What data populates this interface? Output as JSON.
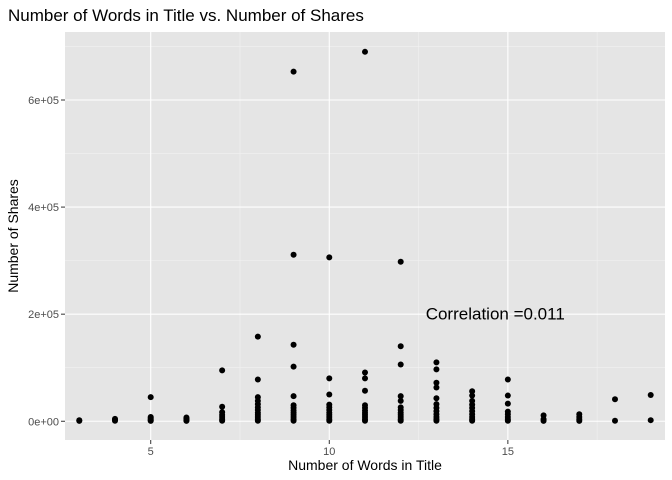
{
  "chart_data": {
    "type": "scatter",
    "title": "Number of Words in Title vs. Number of Shares",
    "xlabel": "Number of Words in Title",
    "ylabel": "Number of Shares",
    "xlim": [
      2.6,
      19.4
    ],
    "ylim": [
      -35000,
      727000
    ],
    "x_ticks": [
      5,
      10,
      15
    ],
    "x_tick_labels": [
      "5",
      "10",
      "15"
    ],
    "y_ticks": [
      0,
      200000,
      400000,
      600000
    ],
    "y_tick_labels": [
      "0e+00",
      "2e+05",
      "4e+05",
      "6e+05"
    ],
    "grid": true,
    "background": "#e5e5e5",
    "point_color": "#000000",
    "annotation": {
      "text": "Correlation =0.011",
      "x": 12.7,
      "y": 190000
    },
    "points": [
      [
        3,
        800
      ],
      [
        3,
        2000
      ],
      [
        4,
        1000
      ],
      [
        4,
        2500
      ],
      [
        4,
        4500
      ],
      [
        5,
        800
      ],
      [
        5,
        2000
      ],
      [
        5,
        4000
      ],
      [
        5,
        6000
      ],
      [
        5,
        8000
      ],
      [
        5,
        45000
      ],
      [
        6,
        800
      ],
      [
        6,
        2000
      ],
      [
        6,
        3500
      ],
      [
        6,
        5000
      ],
      [
        6,
        7000
      ],
      [
        7,
        1000
      ],
      [
        7,
        4000
      ],
      [
        7,
        8000
      ],
      [
        7,
        12000
      ],
      [
        7,
        17000
      ],
      [
        7,
        27000
      ],
      [
        7,
        95000
      ],
      [
        8,
        1000
      ],
      [
        8,
        4000
      ],
      [
        8,
        8000
      ],
      [
        8,
        12000
      ],
      [
        8,
        16000
      ],
      [
        8,
        21000
      ],
      [
        8,
        26000
      ],
      [
        8,
        32000
      ],
      [
        8,
        38000
      ],
      [
        8,
        45000
      ],
      [
        8,
        78000
      ],
      [
        8,
        158000
      ],
      [
        9,
        1000
      ],
      [
        9,
        4000
      ],
      [
        9,
        8000
      ],
      [
        9,
        12000
      ],
      [
        9,
        16000
      ],
      [
        9,
        20000
      ],
      [
        9,
        25000
      ],
      [
        9,
        30000
      ],
      [
        9,
        47000
      ],
      [
        9,
        102000
      ],
      [
        9,
        143000
      ],
      [
        9,
        311000
      ],
      [
        9,
        653000
      ],
      [
        10,
        1000
      ],
      [
        10,
        4000
      ],
      [
        10,
        8000
      ],
      [
        10,
        12000
      ],
      [
        10,
        16000
      ],
      [
        10,
        21000
      ],
      [
        10,
        26000
      ],
      [
        10,
        31000
      ],
      [
        10,
        50000
      ],
      [
        10,
        80000
      ],
      [
        10,
        306000
      ],
      [
        11,
        1000
      ],
      [
        11,
        4000
      ],
      [
        11,
        8000
      ],
      [
        11,
        12000
      ],
      [
        11,
        16000
      ],
      [
        11,
        20000
      ],
      [
        11,
        25000
      ],
      [
        11,
        30000
      ],
      [
        11,
        57000
      ],
      [
        11,
        80000
      ],
      [
        11,
        91000
      ],
      [
        11,
        690000
      ],
      [
        12,
        1000
      ],
      [
        12,
        4000
      ],
      [
        12,
        8000
      ],
      [
        12,
        12000
      ],
      [
        12,
        16000
      ],
      [
        12,
        21000
      ],
      [
        12,
        26000
      ],
      [
        12,
        38000
      ],
      [
        12,
        47000
      ],
      [
        12,
        106000
      ],
      [
        12,
        140000
      ],
      [
        12,
        298000
      ],
      [
        13,
        1000
      ],
      [
        13,
        4000
      ],
      [
        13,
        8000
      ],
      [
        13,
        13000
      ],
      [
        13,
        19000
      ],
      [
        13,
        25000
      ],
      [
        13,
        32000
      ],
      [
        13,
        43000
      ],
      [
        13,
        63000
      ],
      [
        13,
        72000
      ],
      [
        13,
        97000
      ],
      [
        13,
        110000
      ],
      [
        14,
        1000
      ],
      [
        14,
        4000
      ],
      [
        14,
        8000
      ],
      [
        14,
        13000
      ],
      [
        14,
        19000
      ],
      [
        14,
        25000
      ],
      [
        14,
        31000
      ],
      [
        14,
        38000
      ],
      [
        14,
        48000
      ],
      [
        14,
        56000
      ],
      [
        15,
        1000
      ],
      [
        15,
        4000
      ],
      [
        15,
        8000
      ],
      [
        15,
        13000
      ],
      [
        15,
        18000
      ],
      [
        15,
        33000
      ],
      [
        15,
        48000
      ],
      [
        15,
        78000
      ],
      [
        16,
        800
      ],
      [
        16,
        4000
      ],
      [
        16,
        11000
      ],
      [
        17,
        800
      ],
      [
        17,
        4000
      ],
      [
        17,
        8000
      ],
      [
        17,
        13000
      ],
      [
        18,
        1000
      ],
      [
        18,
        41000
      ],
      [
        19,
        2000
      ],
      [
        19,
        49000
      ]
    ]
  }
}
